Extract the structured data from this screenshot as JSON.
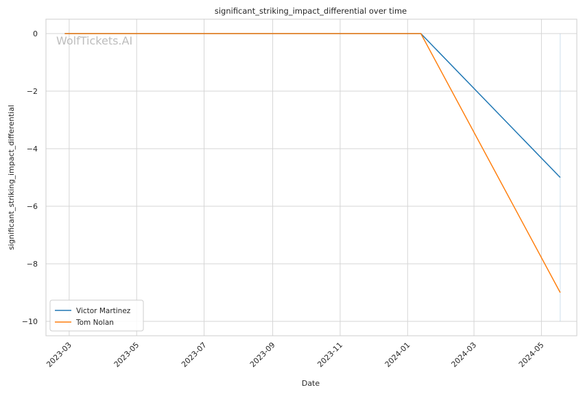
{
  "chart_data": {
    "type": "line",
    "title": "significant_striking_impact_differential over time",
    "xlabel": "Date",
    "ylabel": "significant_striking_impact_differential",
    "watermark": "WolfTickets.AI",
    "x_ticks": [
      "2023-03",
      "2023-05",
      "2023-07",
      "2023-09",
      "2023-11",
      "2024-01",
      "2024-03",
      "2024-05"
    ],
    "y_ticks": [
      0,
      -2,
      -4,
      -6,
      -8,
      -10
    ],
    "y_tick_labels": [
      "0",
      "−2",
      "−4",
      "−6",
      "−8",
      "−10"
    ],
    "xlim": [
      "2023-02-08",
      "2024-06-02"
    ],
    "ylim": [
      -10.5,
      0.5
    ],
    "grid": true,
    "legend_position": "lower-left",
    "series": [
      {
        "name": "Victor Martinez",
        "color": "#1f77b4",
        "x": [
          "2023-02-25",
          "2024-01-13",
          "2024-05-18"
        ],
        "y": [
          0,
          0,
          -5
        ]
      },
      {
        "name": "Tom Nolan",
        "color": "#ff7f0e",
        "x": [
          "2023-02-25",
          "2024-01-13",
          "2024-05-18"
        ],
        "y": [
          0,
          0,
          -9
        ]
      }
    ],
    "vertical_marker": {
      "x": "2024-05-18",
      "y_from": 0,
      "y_to": -10,
      "color": "#a6c8e0"
    }
  }
}
